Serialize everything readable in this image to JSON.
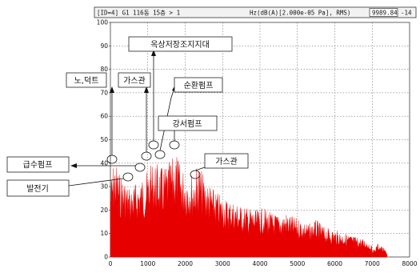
{
  "header": {
    "left": "[ID=4] G1 116동 15층 > 1",
    "right": "Hz(dB(A)[2.000e-05 Pa], RMS)",
    "value1": "9989.84",
    "value2": "-14"
  },
  "chart_data": {
    "type": "area",
    "xlim": [
      0,
      8000
    ],
    "ylim": [
      0,
      100
    ],
    "x_ticks": [
      "0",
      "1000",
      "2000",
      "3000",
      "4000",
      "5000",
      "6000",
      "7000",
      "8000"
    ],
    "y_ticks": [
      "0",
      "10",
      "20",
      "30",
      "40",
      "50",
      "60",
      "70",
      "80",
      "90",
      "100"
    ],
    "grid": true,
    "fill_color": "#e60000",
    "envelope": {
      "x": [
        0,
        100,
        250,
        400,
        500,
        700,
        900,
        1000,
        1150,
        1250,
        1400,
        1500,
        1650,
        1750,
        1850,
        2000,
        2200,
        2350,
        2500,
        2700,
        2900,
        3100,
        3300,
        3500,
        3700,
        3900,
        4100,
        4300,
        4500,
        4700,
        4900,
        5100,
        5300,
        5500,
        5700,
        5900,
        6100,
        6300,
        6500,
        6700,
        6900,
        7050,
        7150,
        7300,
        7400
      ],
      "y": [
        33,
        42,
        36,
        33,
        30,
        32,
        35,
        37,
        41,
        40,
        38,
        39,
        42,
        46,
        40,
        37,
        36,
        40,
        35,
        30,
        27,
        25,
        24,
        22,
        21,
        20,
        21,
        19,
        18,
        19,
        17,
        16,
        14,
        16,
        13,
        12,
        11,
        10,
        9,
        8,
        7,
        3,
        6,
        4,
        2
      ]
    },
    "annotations": [
      {
        "text": "노,덕트",
        "x": 50,
        "y": 42
      },
      {
        "text": "가스관",
        "x": 780,
        "y": 44
      },
      {
        "text": "옥상저장조지지대",
        "x": 1050,
        "y": 48
      },
      {
        "text": "순환펌프",
        "x": 1150,
        "y": 45
      },
      {
        "text": "강서펌프",
        "x": 1700,
        "y": 47
      },
      {
        "text": "가스관",
        "x": 2200,
        "y": 35
      },
      {
        "text": "급수펌프",
        "x": 700,
        "y": 38
      },
      {
        "text": "발전기",
        "x": 400,
        "y": 34
      }
    ]
  }
}
